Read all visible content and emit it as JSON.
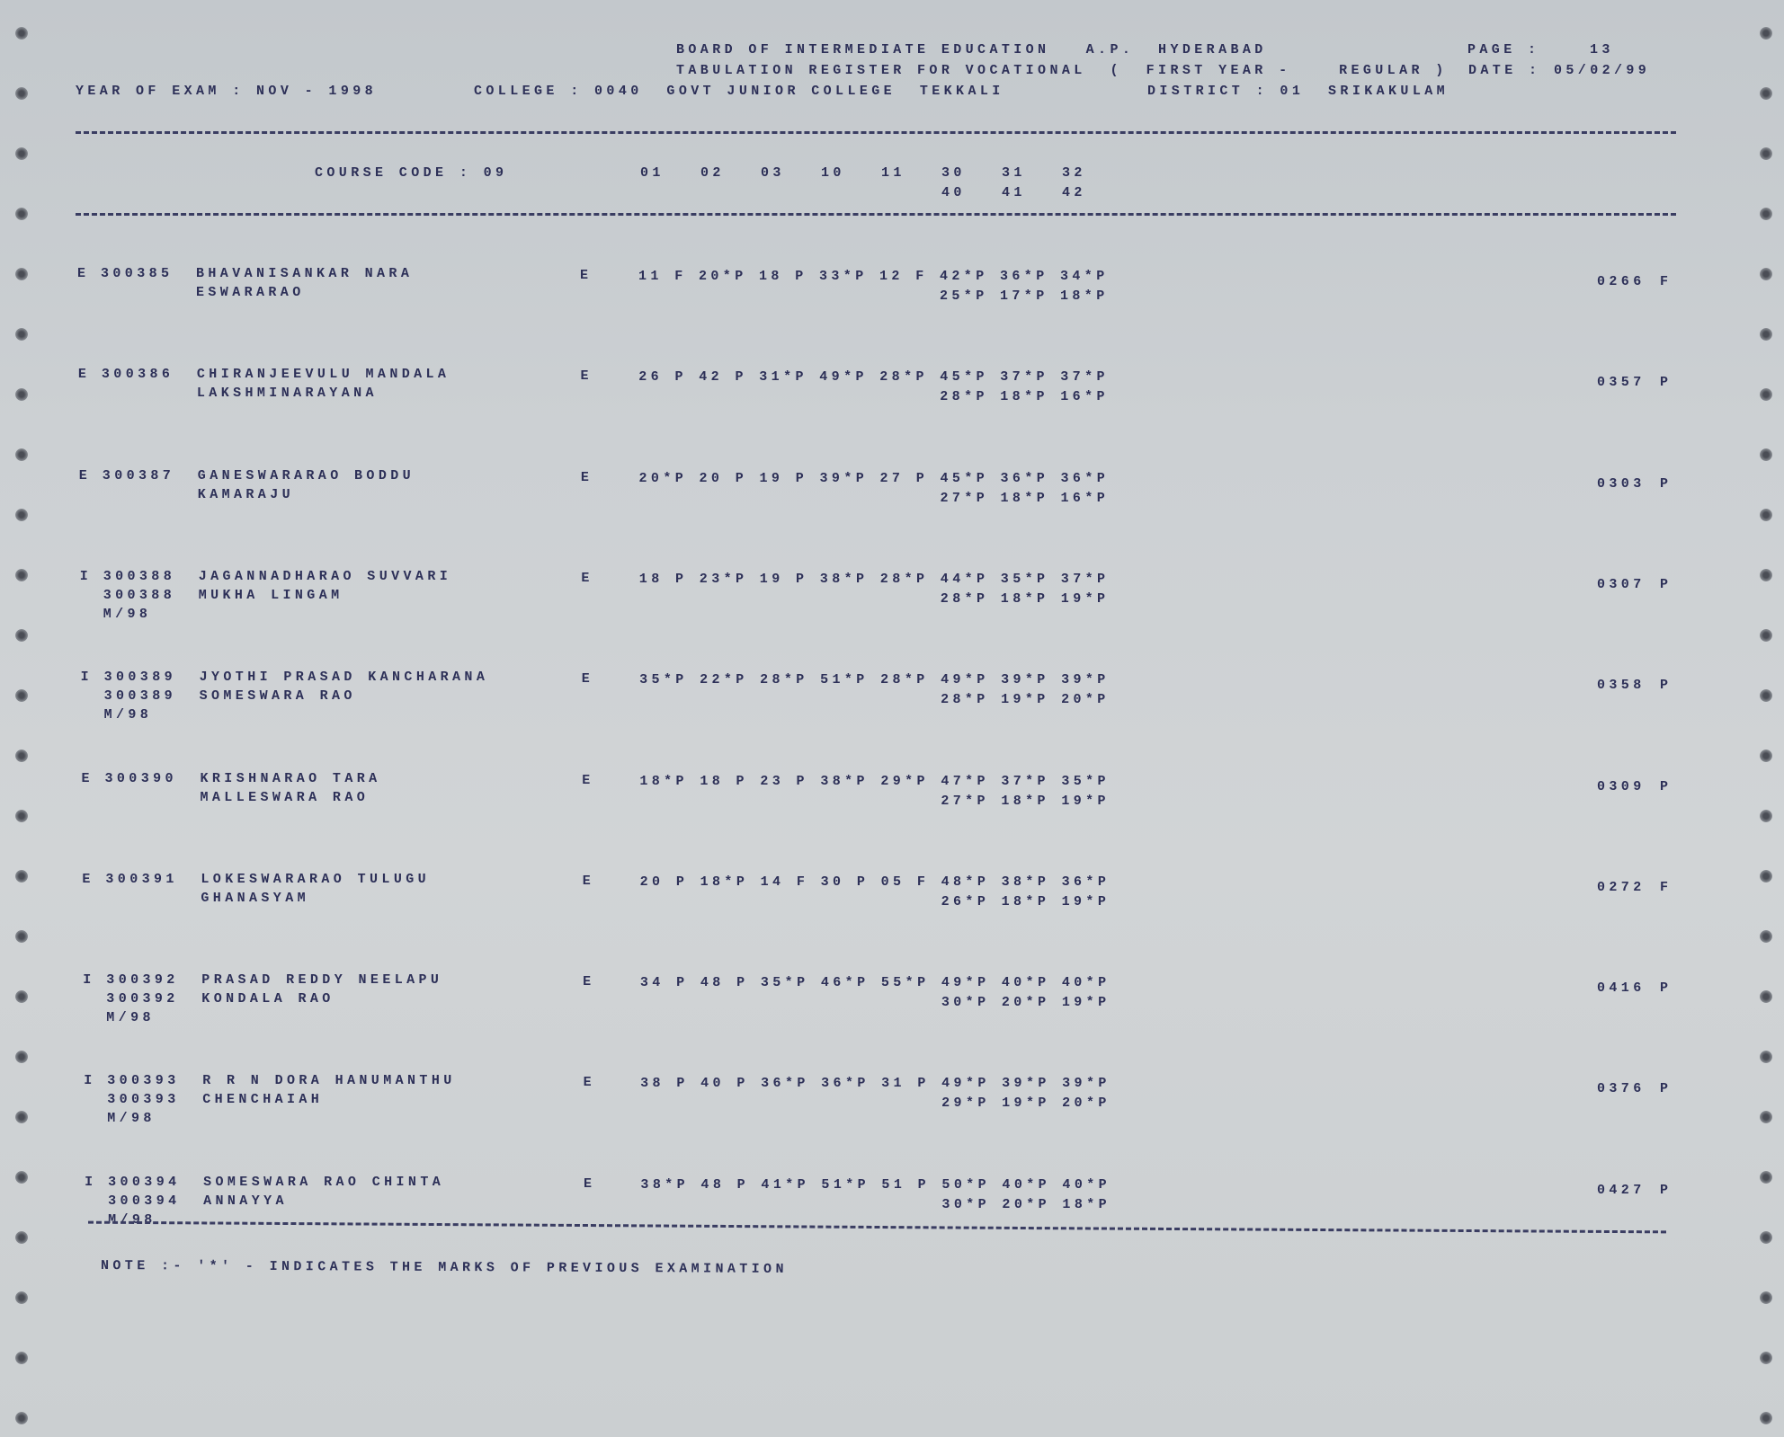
{
  "header": {
    "board": "BOARD OF INTERMEDIATE EDUCATION   A.P.  HYDERABAD",
    "page_label": "PAGE :",
    "page_number": "13",
    "register": "TABULATION REGISTER FOR VOCATIONAL  (  FIRST YEAR -    REGULAR )",
    "date_label": "DATE :",
    "date": "05/02/99",
    "year_of_exam": "YEAR OF EXAM : NOV - 1998",
    "college": "COLLEGE : 0040  GOVT JUNIOR COLLEGE  TEKKALI",
    "district": "DISTRICT : 01  SRIKAKULAM"
  },
  "columns": {
    "course_code": "COURSE CODE : 09",
    "codes": [
      "01",
      "02",
      "03",
      "10",
      "11",
      "30",
      "31",
      "32"
    ],
    "codes2": [
      "40",
      "41",
      "42"
    ]
  },
  "records": [
    {
      "type": "E",
      "roll": "300385",
      "roll2": "",
      "session": "",
      "name1": "BHAVANISANKAR NARA",
      "name2": "ESWARARAO",
      "medium": "E",
      "marks": [
        "11 F",
        "20*P",
        "18 P",
        "33*P",
        "12 F",
        "42*P",
        "36*P",
        "34*P"
      ],
      "marks2": [
        "25*P",
        "17*P",
        "18*P"
      ],
      "total": "0266",
      "result": "F"
    },
    {
      "type": "E",
      "roll": "300386",
      "roll2": "",
      "session": "",
      "name1": "CHIRANJEEVULU MANDALA",
      "name2": "LAKSHMINARAYANA",
      "medium": "E",
      "marks": [
        "26 P",
        "42 P",
        "31*P",
        "49*P",
        "28*P",
        "45*P",
        "37*P",
        "37*P"
      ],
      "marks2": [
        "28*P",
        "18*P",
        "16*P"
      ],
      "total": "0357",
      "result": "P"
    },
    {
      "type": "E",
      "roll": "300387",
      "roll2": "",
      "session": "",
      "name1": "GANESWARARAO BODDU",
      "name2": "KAMARAJU",
      "medium": "E",
      "marks": [
        "20*P",
        "20 P",
        "19 P",
        "39*P",
        "27 P",
        "45*P",
        "36*P",
        "36*P"
      ],
      "marks2": [
        "27*P",
        "18*P",
        "16*P"
      ],
      "total": "0303",
      "result": "P"
    },
    {
      "type": "I",
      "roll": "300388",
      "roll2": "300388",
      "session": "M/98",
      "name1": "JAGANNADHARAO SUVVARI",
      "name2": "MUKHA LINGAM",
      "medium": "E",
      "marks": [
        "18 P",
        "23*P",
        "19 P",
        "38*P",
        "28*P",
        "44*P",
        "35*P",
        "37*P"
      ],
      "marks2": [
        "28*P",
        "18*P",
        "19*P"
      ],
      "total": "0307",
      "result": "P"
    },
    {
      "type": "I",
      "roll": "300389",
      "roll2": "300389",
      "session": "M/98",
      "name1": "JYOTHI PRASAD KANCHARANA",
      "name2": "SOMESWARA RAO",
      "medium": "E",
      "marks": [
        "35*P",
        "22*P",
        "28*P",
        "51*P",
        "28*P",
        "49*P",
        "39*P",
        "39*P"
      ],
      "marks2": [
        "28*P",
        "19*P",
        "20*P"
      ],
      "total": "0358",
      "result": "P"
    },
    {
      "type": "E",
      "roll": "300390",
      "roll2": "",
      "session": "",
      "name1": "KRISHNARAO TARA",
      "name2": "MALLESWARA RAO",
      "medium": "E",
      "marks": [
        "18*P",
        "18 P",
        "23 P",
        "38*P",
        "29*P",
        "47*P",
        "37*P",
        "35*P"
      ],
      "marks2": [
        "27*P",
        "18*P",
        "19*P"
      ],
      "total": "0309",
      "result": "P"
    },
    {
      "type": "E",
      "roll": "300391",
      "roll2": "",
      "session": "",
      "name1": "LOKESWARARAO TULUGU",
      "name2": "GHANASYAM",
      "medium": "E",
      "marks": [
        "20 P",
        "18*P",
        "14 F",
        "30 P",
        "05 F",
        "48*P",
        "38*P",
        "36*P"
      ],
      "marks2": [
        "26*P",
        "18*P",
        "19*P"
      ],
      "total": "0272",
      "result": "F"
    },
    {
      "type": "I",
      "roll": "300392",
      "roll2": "300392",
      "session": "M/98",
      "name1": "PRASAD REDDY NEELAPU",
      "name2": "KONDALA RAO",
      "medium": "E",
      "marks": [
        "34 P",
        "48 P",
        "35*P",
        "46*P",
        "55*P",
        "49*P",
        "40*P",
        "40*P"
      ],
      "marks2": [
        "30*P",
        "20*P",
        "19*P"
      ],
      "total": "0416",
      "result": "P"
    },
    {
      "type": "I",
      "roll": "300393",
      "roll2": "300393",
      "session": "M/98",
      "name1": "R R N DORA HANUMANTHU",
      "name2": "CHENCHAIAH",
      "medium": "E",
      "marks": [
        "38 P",
        "40 P",
        "36*P",
        "36*P",
        "31 P",
        "49*P",
        "39*P",
        "39*P"
      ],
      "marks2": [
        "29*P",
        "19*P",
        "20*P"
      ],
      "total": "0376",
      "result": "P"
    },
    {
      "type": "I",
      "roll": "300394",
      "roll2": "300394",
      "session": "M/98",
      "name1": "SOMESWARA RAO CHINTA",
      "name2": "ANNAYYA",
      "medium": "E",
      "marks": [
        "38*P",
        "48 P",
        "41*P",
        "51*P",
        "51 P",
        "50*P",
        "40*P",
        "40*P"
      ],
      "marks2": [
        "30*P",
        "20*P",
        "18*P"
      ],
      "total": "0427",
      "result": "P"
    }
  ],
  "note": "NOTE :- '*' - INDICATES THE MARKS OF PREVIOUS EXAMINATION",
  "colors": {
    "paper": "#ccd0d3",
    "ink": "#2d3058"
  }
}
